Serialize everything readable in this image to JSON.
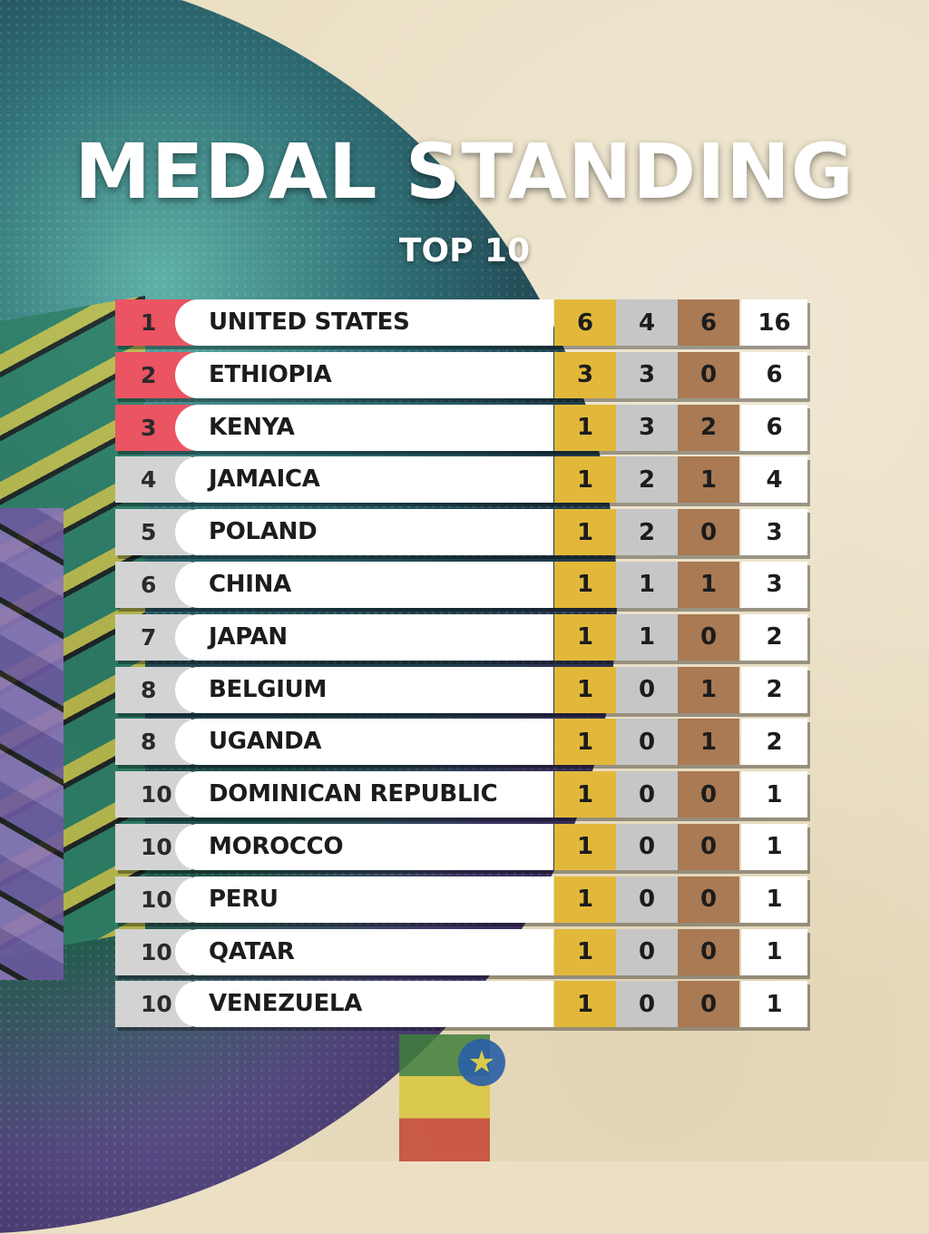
{
  "header": {
    "title": "MEDAL STANDING",
    "subtitle": "TOP 10"
  },
  "rows": [
    {
      "rank": "1",
      "country": "UNITED STATES",
      "flag": "usa-flag-icon",
      "gold": "6",
      "silver": "4",
      "bronze": "6",
      "total": "16"
    },
    {
      "rank": "2",
      "country": "ETHIOPIA",
      "flag": "ethiopia-flag-icon",
      "gold": "3",
      "silver": "3",
      "bronze": "0",
      "total": "6"
    },
    {
      "rank": "3",
      "country": "KENYA",
      "flag": "kenya-flag-icon",
      "gold": "1",
      "silver": "3",
      "bronze": "2",
      "total": "6"
    },
    {
      "rank": "4",
      "country": "JAMAICA",
      "flag": "jamaica-flag-icon",
      "gold": "1",
      "silver": "2",
      "bronze": "1",
      "total": "4"
    },
    {
      "rank": "5",
      "country": "POLAND",
      "flag": "poland-flag-icon",
      "gold": "1",
      "silver": "2",
      "bronze": "0",
      "total": "3"
    },
    {
      "rank": "6",
      "country": "CHINA",
      "flag": "china-flag-icon",
      "gold": "1",
      "silver": "1",
      "bronze": "1",
      "total": "3"
    },
    {
      "rank": "7",
      "country": "JAPAN",
      "flag": "japan-flag-icon",
      "gold": "1",
      "silver": "1",
      "bronze": "0",
      "total": "2"
    },
    {
      "rank": "8",
      "country": "BELGIUM",
      "flag": "belgium-flag-icon",
      "gold": "1",
      "silver": "0",
      "bronze": "1",
      "total": "2"
    },
    {
      "rank": "8",
      "country": "UGANDA",
      "flag": "uganda-flag-icon",
      "gold": "1",
      "silver": "0",
      "bronze": "1",
      "total": "2"
    },
    {
      "rank": "10",
      "country": "DOMINICAN REPUBLIC",
      "flag": "dominican-republic-flag-icon",
      "gold": "1",
      "silver": "0",
      "bronze": "0",
      "total": "1"
    },
    {
      "rank": "10",
      "country": "MOROCCO",
      "flag": "morocco-flag-icon",
      "gold": "1",
      "silver": "0",
      "bronze": "0",
      "total": "1"
    },
    {
      "rank": "10",
      "country": "PERU",
      "flag": "peru-flag-icon",
      "gold": "1",
      "silver": "0",
      "bronze": "0",
      "total": "1"
    },
    {
      "rank": "10",
      "country": "QATAR",
      "flag": "qatar-flag-icon",
      "gold": "1",
      "silver": "0",
      "bronze": "0",
      "total": "1"
    },
    {
      "rank": "10",
      "country": "VENEZUELA",
      "flag": "venezuela-flag-icon",
      "gold": "1",
      "silver": "0",
      "bronze": "0",
      "total": "1"
    }
  ],
  "colors": {
    "podium_rank": "#ea5463",
    "rank": "#d3d3d3",
    "gold": "#e2b83a",
    "silver": "#c6c6c6",
    "bronze": "#a97a53",
    "total": "#ffffff"
  }
}
